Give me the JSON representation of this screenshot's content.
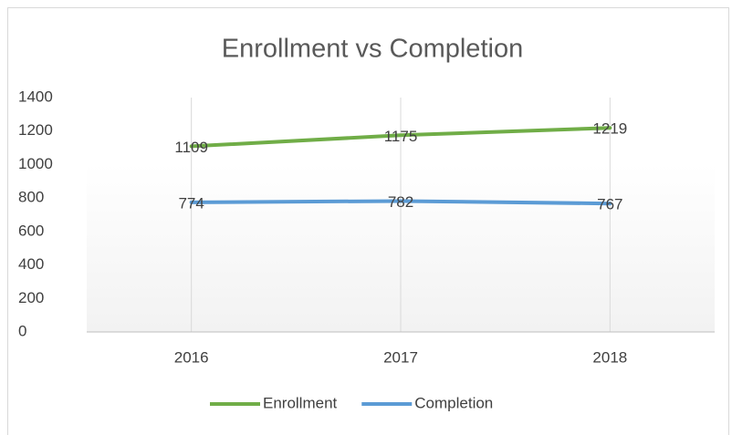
{
  "chart_data": {
    "type": "line",
    "title": "Enrollment vs Completion",
    "categories": [
      "2016",
      "2017",
      "2018"
    ],
    "series": [
      {
        "name": "Enrollment",
        "color": "#70ad47",
        "values": [
          1109,
          1175,
          1219
        ]
      },
      {
        "name": "Completion",
        "color": "#5b9bd5",
        "values": [
          774,
          782,
          767
        ]
      }
    ],
    "ylim": [
      0,
      1400
    ],
    "yticks": [
      0,
      200,
      400,
      600,
      800,
      1000,
      1200,
      1400
    ],
    "grid": true,
    "data_labels": true,
    "legend": "bottom"
  }
}
